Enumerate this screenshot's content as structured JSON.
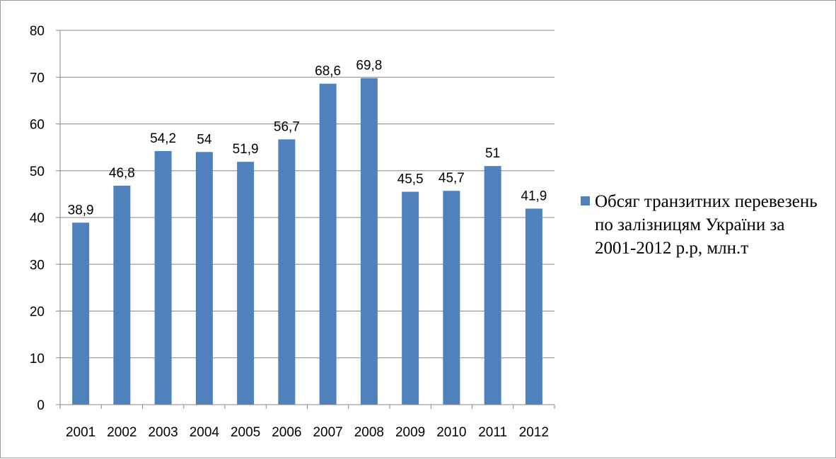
{
  "chart_data": {
    "type": "bar",
    "categories": [
      "2001",
      "2002",
      "2003",
      "2004",
      "2005",
      "2006",
      "2007",
      "2008",
      "2009",
      "2010",
      "2011",
      "2012"
    ],
    "series": [
      {
        "name": "Обсяг транзитних перевезень по залізницям України за 2001-2012 р.р, млн.т",
        "values": [
          38.9,
          46.8,
          54.2,
          54,
          51.9,
          56.7,
          68.6,
          69.8,
          45.5,
          45.7,
          51,
          41.9
        ],
        "data_labels": [
          "38,9",
          "46,8",
          "54,2",
          "54",
          "51,9",
          "56,7",
          "68,6",
          "69,8",
          "45,5",
          "45,7",
          "51",
          "41,9"
        ],
        "color": "#4f81bd"
      }
    ],
    "ylim": [
      0,
      80
    ],
    "yticks": [
      0,
      10,
      20,
      30,
      40,
      50,
      60,
      70,
      80
    ],
    "grid": true,
    "legend_position": "right",
    "title": "",
    "xlabel": "",
    "ylabel": ""
  },
  "legend": {
    "label": "Обсяг транзитних перевезень по залізницям України за 2001-2012 р.р, млн.т"
  }
}
